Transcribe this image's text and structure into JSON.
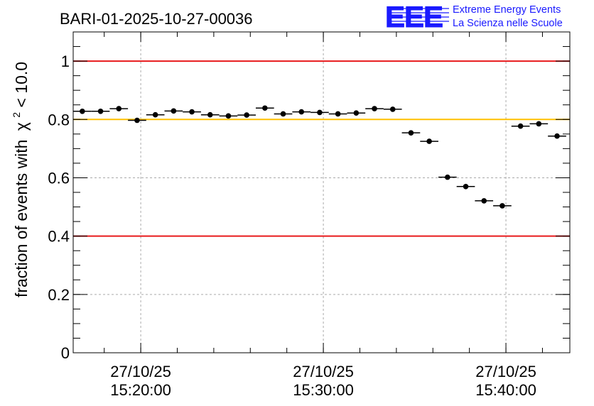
{
  "chart_data": {
    "type": "scatter",
    "title": "BARI-01-2025-10-27-00036",
    "ylabel": "fraction of events with",
    "ylabel_expr": {
      "symbol": "χ",
      "power": "2",
      "rest": " < 10.0"
    },
    "xlabel": "",
    "ylim": [
      0,
      1.1
    ],
    "yticks": [
      0,
      0.2,
      0.4,
      0.6,
      0.8,
      1
    ],
    "ytick_labels": [
      "0",
      "0.2",
      "0.4",
      "0.6",
      "0.8",
      "1"
    ],
    "xlim": [
      "15:16:18",
      "15:43:30"
    ],
    "xticks": [
      {
        "x": "15:20:00",
        "date": "27/10/25",
        "time": "15:20:00"
      },
      {
        "x": "15:30:00",
        "date": "27/10/25",
        "time": "15:30:00"
      },
      {
        "x": "15:40:00",
        "date": "27/10/25",
        "time": "15:40:00"
      }
    ],
    "grid": true,
    "bin_width_seconds": 60,
    "reference_lines": [
      {
        "y": 1.0,
        "color": "#e8191b"
      },
      {
        "y": 0.8,
        "color": "#ffc000"
      },
      {
        "y": 0.4,
        "color": "#e8191b"
      }
    ],
    "series": [
      {
        "color": "#000000",
        "x": [
          "15:16:48",
          "15:17:48",
          "15:18:48",
          "15:19:48",
          "15:20:48",
          "15:21:48",
          "15:22:48",
          "15:23:48",
          "15:24:48",
          "15:25:48",
          "15:26:48",
          "15:27:48",
          "15:28:48",
          "15:29:48",
          "15:30:48",
          "15:31:48",
          "15:32:48",
          "15:33:48",
          "15:34:48",
          "15:35:48",
          "15:36:48",
          "15:37:48",
          "15:38:48",
          "15:39:48",
          "15:40:48",
          "15:41:48",
          "15:42:48"
        ],
        "y": [
          0.828,
          0.828,
          0.837,
          0.797,
          0.816,
          0.829,
          0.826,
          0.816,
          0.812,
          0.815,
          0.839,
          0.819,
          0.826,
          0.824,
          0.819,
          0.822,
          0.837,
          0.835,
          0.754,
          0.725,
          0.602,
          0.57,
          0.521,
          0.504,
          0.777,
          0.785,
          0.743
        ]
      }
    ]
  },
  "logo": {
    "mark": "EEE",
    "line1": "Extreme Energy Events",
    "line2": "La Scienza nelle Scuole",
    "color": "#1a1aff"
  }
}
